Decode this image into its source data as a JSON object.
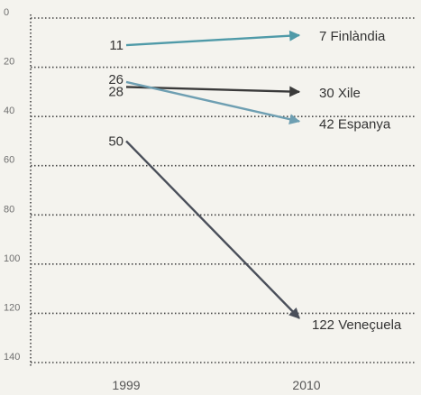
{
  "chart_data": {
    "type": "line",
    "title": "",
    "xlabel": "",
    "ylabel": "",
    "x": [
      "1999",
      "2010"
    ],
    "ylim": [
      0,
      140
    ],
    "y_inverted": true,
    "yticks": [
      0,
      20,
      40,
      60,
      80,
      100,
      120,
      140
    ],
    "grid": true,
    "series": [
      {
        "name": "Finlàndia",
        "values": [
          11,
          7
        ],
        "color": "#4f9aa8",
        "start_label": "11",
        "end_label": "7",
        "end_name": "Finlàndia"
      },
      {
        "name": "Xile",
        "values": [
          28,
          30
        ],
        "color": "#3a3a3a",
        "start_label": "28",
        "end_label": "30",
        "end_name": "Xile"
      },
      {
        "name": "Espanya",
        "values": [
          26,
          42
        ],
        "color": "#6e9fb2",
        "start_label": "26",
        "end_label": "42",
        "end_name": "Espanya"
      },
      {
        "name": "Veneçuela",
        "values": [
          50,
          122
        ],
        "color": "#4a4f5a",
        "start_label": "50",
        "end_label": "122",
        "end_name": "Veneçuela"
      }
    ]
  }
}
